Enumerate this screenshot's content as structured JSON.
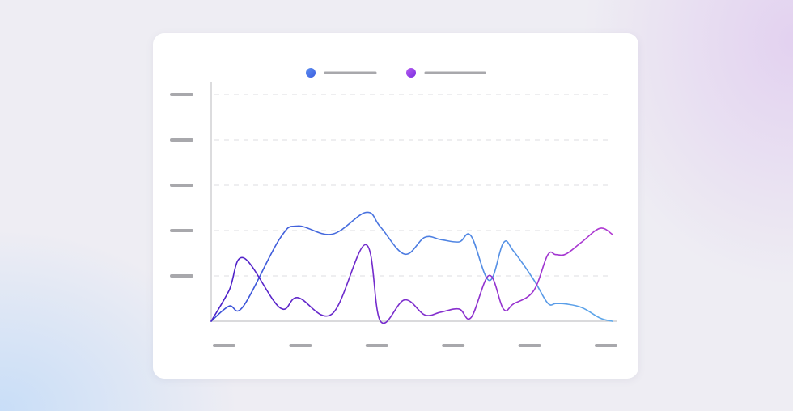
{
  "colors": {
    "series_a_start": "#3a4fd8",
    "series_a_end": "#5fa9ea",
    "series_b_start": "#4a21c8",
    "series_b_end": "#b13ad2",
    "legend_dot_a_start": "#5c8ff0",
    "legend_dot_a_end": "#3d5ee0",
    "legend_dot_b_start": "#b65df0",
    "legend_dot_b_end": "#7a2de0",
    "placeholder_gray": "#a8a8ac"
  },
  "chart_data": {
    "type": "line",
    "title": "",
    "xlabel": "",
    "ylabel": "",
    "legend": "top-center",
    "grid": true,
    "x_tick_count": 6,
    "y_tick_count": 5,
    "xlim": [
      0,
      100
    ],
    "ylim": [
      0,
      5.2
    ],
    "x": [
      0,
      4.4,
      8,
      17,
      21.5,
      30,
      38.4,
      42,
      48,
      53,
      57,
      61.5,
      64.5,
      69,
      72.5,
      75,
      80,
      83.5,
      85.5,
      88,
      92,
      96.5,
      99.5
    ],
    "series": [
      {
        "values": [
          0,
          0.33,
          0.33,
          1.82,
          2.1,
          1.92,
          2.4,
          2.08,
          1.48,
          1.85,
          1.8,
          1.75,
          1.88,
          0.9,
          1.73,
          1.55,
          0.92,
          0.4,
          0.39,
          0.38,
          0.3,
          0.07,
          0.0
        ]
      },
      {
        "values": [
          0,
          0.67,
          1.4,
          0.3,
          0.52,
          0.16,
          1.69,
          0,
          0.47,
          0.14,
          0.2,
          0.27,
          0.08,
          1.01,
          0.27,
          0.38,
          0.67,
          1.46,
          1.47,
          1.48,
          1.75,
          2.05,
          1.92
        ]
      }
    ]
  }
}
